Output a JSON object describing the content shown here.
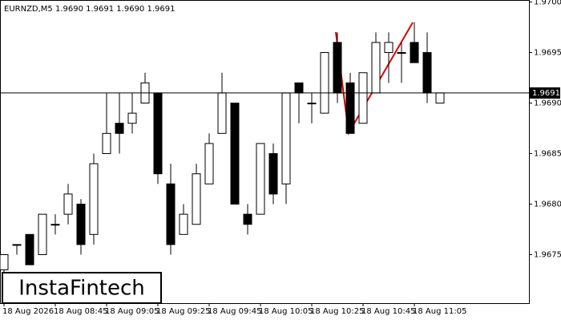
{
  "chart_data": {
    "type": "candlestick",
    "title": "EURNZD,M5  1.9690 1.9691 1.9690 1.9691",
    "categories": [
      "18 Aug 2026",
      null,
      null,
      null,
      "18 Aug 08:45",
      null,
      null,
      null,
      "18 Aug 09:05",
      null,
      null,
      null,
      "18 Aug 09:25",
      null,
      null,
      null,
      "18 Aug 09:45",
      null,
      null,
      null,
      "18 Aug 10:05",
      null,
      null,
      null,
      "18 Aug 10:25",
      null,
      null,
      null,
      "18 Aug 10:45",
      null,
      null,
      null,
      "18 Aug 11:05",
      null,
      null
    ],
    "open": [
      1.96735,
      1.9676,
      1.9677,
      1.9675,
      1.9678,
      1.9679,
      1.968,
      1.9677,
      1.9685,
      1.9688,
      1.9688,
      1.969,
      1.9691,
      1.9682,
      1.9677,
      1.9678,
      1.9682,
      1.9687,
      1.969,
      1.9679,
      1.9679,
      1.9685,
      1.9682,
      1.9692,
      1.969,
      1.9689,
      1.9696,
      1.9692,
      1.9688,
      1.9691,
      1.9695,
      1.9695,
      1.9696,
      1.9695,
      1.969
    ],
    "high": [
      1.9675,
      1.9676,
      1.9677,
      1.9679,
      1.9679,
      1.9682,
      1.96805,
      1.9685,
      1.9691,
      1.9691,
      1.9691,
      1.9693,
      1.9691,
      1.9684,
      1.968,
      1.9684,
      1.9687,
      1.9693,
      1.969,
      1.968,
      1.9686,
      1.9686,
      1.9691,
      1.9692,
      1.9691,
      1.9695,
      1.9697,
      1.9693,
      1.9693,
      1.9697,
      1.9697,
      1.9696,
      1.9698,
      1.9697,
      1.9691
    ],
    "low": [
      1.9672,
      1.9675,
      1.9674,
      1.9675,
      1.9677,
      1.9678,
      1.9675,
      1.9676,
      1.9685,
      1.9685,
      1.9687,
      1.969,
      1.9682,
      1.9675,
      1.9677,
      1.9678,
      1.9682,
      1.9687,
      1.968,
      1.9677,
      1.9679,
      1.968,
      1.968,
      1.9688,
      1.9688,
      1.9689,
      1.969,
      1.9687,
      1.9688,
      1.9691,
      1.9692,
      1.9692,
      1.9694,
      1.969,
      1.969
    ],
    "close": [
      1.9675,
      1.9676,
      1.9674,
      1.9679,
      1.9678,
      1.9681,
      1.9676,
      1.9684,
      1.9687,
      1.9687,
      1.9689,
      1.9692,
      1.9683,
      1.9676,
      1.9679,
      1.9683,
      1.9686,
      1.9691,
      1.968,
      1.9678,
      1.9686,
      1.9681,
      1.9691,
      1.9691,
      1.969,
      1.9695,
      1.9691,
      1.9687,
      1.9693,
      1.9696,
      1.9696,
      1.9695,
      1.9694,
      1.9691,
      1.9691
    ],
    "ylim": [
      1.96702,
      1.97002
    ],
    "yticks": [
      1.9675,
      {
        "value": 1.968,
        "label": "1.9680"
      },
      1.9685,
      {
        "value": 1.969,
        "label": "1.9690"
      },
      1.9695,
      {
        "value": 1.97,
        "label": "1.9700"
      }
    ],
    "current_price": 1.9691,
    "up_color": "#ffffff",
    "down_color": "#000000",
    "watermark": "InstaFintech"
  }
}
